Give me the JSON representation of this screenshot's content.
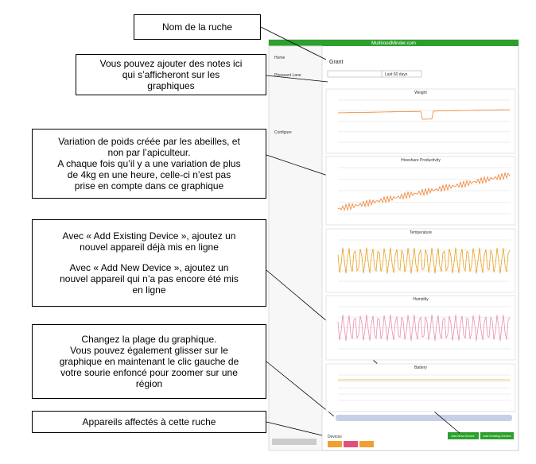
{
  "callouts": [
    {
      "paragraphs": [
        [
          "Nom de la ruche"
        ]
      ]
    },
    {
      "paragraphs": [
        [
          "Vous pouvez ajouter des notes ici",
          "qui s’afficheront sur les",
          "graphiques"
        ]
      ]
    },
    {
      "paragraphs": [
        [
          "Variation de poids créée par les abeilles, et",
          "non par l’apiculteur.",
          "A chaque fois qu’il y a une variation de plus",
          "de 4kg en une heure, celle-ci n’est pas",
          "prise en compte dans ce graphique"
        ]
      ]
    },
    {
      "paragraphs": [
        [
          "Avec « Add Existing Device », ajoutez un",
          "nouvel appareil déjà mis en ligne"
        ],
        [
          "Avec « Add New Device », ajoutez un",
          "nouvel appareil qui n’a pas encore été mis",
          "en ligne"
        ]
      ]
    },
    {
      "paragraphs": [
        [
          "Changez la plage du graphique.",
          "Vous pouvez également glisser sur le",
          "graphique en maintenant le clic gauche de",
          "votre sourie enfoncé pour zoomer sur une",
          "région"
        ]
      ]
    },
    {
      "paragraphs": [
        [
          "Appareils affectés à cette ruche"
        ]
      ]
    }
  ],
  "app": {
    "site": "MultiroodMinder.com",
    "sidebar": [
      "Home",
      "Pheasant Lane",
      "Configure"
    ],
    "hive": "Grant",
    "range": "Last 60 days",
    "charts": [
      "Weight",
      "Hiveshare Productivity",
      "Temperature",
      "Humidity",
      "Battery"
    ],
    "devices_label": "Devices",
    "buttons": [
      "Add New Device",
      "Add Existing Device"
    ]
  }
}
